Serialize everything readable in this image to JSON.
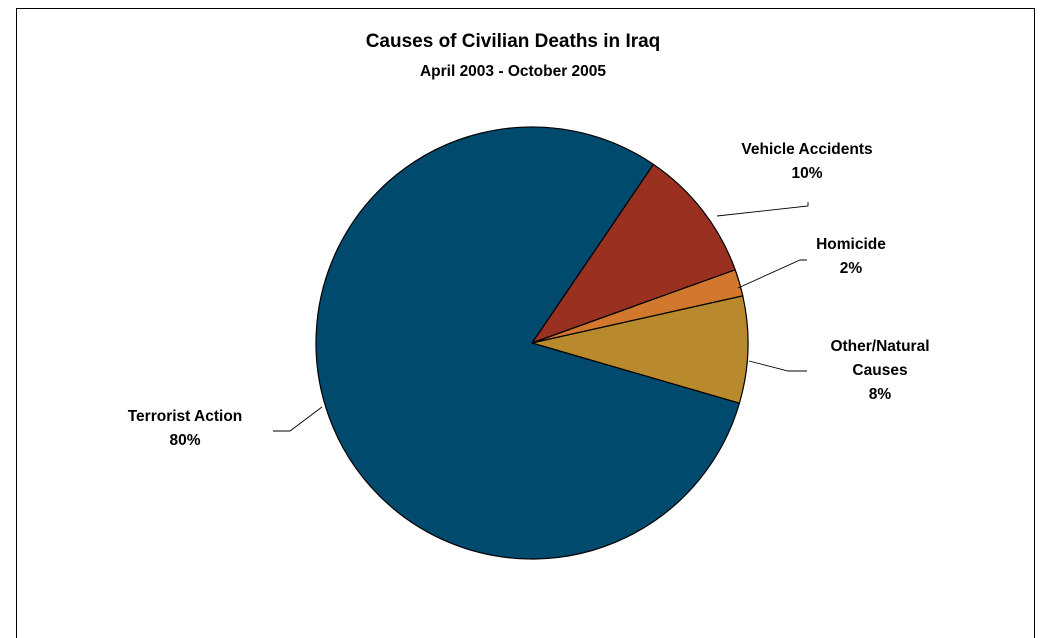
{
  "chart_data": {
    "type": "pie",
    "title": "Causes of Civilian Deaths in Iraq",
    "subtitle": "April 2003 - October 2005",
    "slices": [
      {
        "label": "Vehicle Accidents",
        "value_label": "10%",
        "value": 10,
        "color": "#9A3020"
      },
      {
        "label": "Homicide",
        "value_label": "2%",
        "value": 2,
        "color": "#D2772E"
      },
      {
        "label": "Other/Natural Causes",
        "label_lines": [
          "Other/Natural",
          "Causes"
        ],
        "value_label": "8%",
        "value": 8,
        "color": "#B88A2D"
      },
      {
        "label": "Terrorist Action",
        "value_label": "80%",
        "value": 80,
        "color": "#004A6E"
      }
    ],
    "legend": "none",
    "data_labels": "outside with leader lines"
  }
}
